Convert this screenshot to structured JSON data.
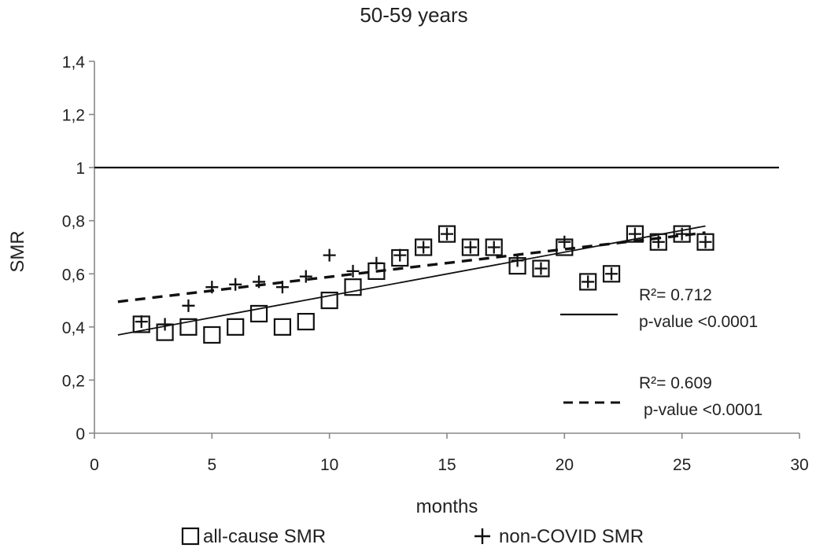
{
  "chart_data": {
    "type": "scatter",
    "title": "50-59 years",
    "xlabel": "months",
    "ylabel": "SMR",
    "xlim": [
      0,
      30
    ],
    "ylim": [
      0,
      1.4
    ],
    "x_ticks": [
      "0",
      "5",
      "10",
      "15",
      "20",
      "25",
      "30"
    ],
    "y_ticks": [
      "0",
      "0,2",
      "0,4",
      "0,6",
      "0,8",
      "1",
      "1,2",
      "1,4"
    ],
    "grid": false,
    "reference_line": {
      "y": 1
    },
    "series": [
      {
        "name": "all-cause SMR",
        "marker": "square",
        "points": [
          {
            "x": 2,
            "y": 0.41
          },
          {
            "x": 3,
            "y": 0.38
          },
          {
            "x": 4,
            "y": 0.4
          },
          {
            "x": 5,
            "y": 0.37
          },
          {
            "x": 6,
            "y": 0.4
          },
          {
            "x": 7,
            "y": 0.45
          },
          {
            "x": 8,
            "y": 0.4
          },
          {
            "x": 9,
            "y": 0.42
          },
          {
            "x": 10,
            "y": 0.5
          },
          {
            "x": 11,
            "y": 0.55
          },
          {
            "x": 12,
            "y": 0.61
          },
          {
            "x": 13,
            "y": 0.66
          },
          {
            "x": 14,
            "y": 0.7
          },
          {
            "x": 15,
            "y": 0.75
          },
          {
            "x": 16,
            "y": 0.7
          },
          {
            "x": 17,
            "y": 0.7
          },
          {
            "x": 18,
            "y": 0.63
          },
          {
            "x": 19,
            "y": 0.62
          },
          {
            "x": 20,
            "y": 0.7
          },
          {
            "x": 21,
            "y": 0.57
          },
          {
            "x": 22,
            "y": 0.6
          },
          {
            "x": 23,
            "y": 0.75
          },
          {
            "x": 24,
            "y": 0.72
          },
          {
            "x": 25,
            "y": 0.75
          },
          {
            "x": 26,
            "y": 0.72
          }
        ],
        "trend": {
          "style": "solid",
          "from": [
            1,
            0.37
          ],
          "to": [
            26,
            0.78
          ]
        },
        "r2_label": "R²= 0.712",
        "p_label": "p-value <0.0001"
      },
      {
        "name": "non-COVID SMR",
        "marker": "plus",
        "points": [
          {
            "x": 2,
            "y": 0.42
          },
          {
            "x": 3,
            "y": 0.41
          },
          {
            "x": 4,
            "y": 0.48
          },
          {
            "x": 5,
            "y": 0.55
          },
          {
            "x": 6,
            "y": 0.56
          },
          {
            "x": 7,
            "y": 0.57
          },
          {
            "x": 8,
            "y": 0.55
          },
          {
            "x": 9,
            "y": 0.59
          },
          {
            "x": 10,
            "y": 0.67
          },
          {
            "x": 11,
            "y": 0.61
          },
          {
            "x": 12,
            "y": 0.64
          },
          {
            "x": 13,
            "y": 0.67
          },
          {
            "x": 14,
            "y": 0.7
          },
          {
            "x": 15,
            "y": 0.75
          },
          {
            "x": 16,
            "y": 0.7
          },
          {
            "x": 17,
            "y": 0.7
          },
          {
            "x": 18,
            "y": 0.65
          },
          {
            "x": 19,
            "y": 0.62
          },
          {
            "x": 20,
            "y": 0.72
          },
          {
            "x": 21,
            "y": 0.57
          },
          {
            "x": 22,
            "y": 0.6
          },
          {
            "x": 23,
            "y": 0.75
          },
          {
            "x": 24,
            "y": 0.72
          },
          {
            "x": 25,
            "y": 0.75
          },
          {
            "x": 26,
            "y": 0.72
          }
        ],
        "trend": {
          "style": "dashed",
          "from": [
            1,
            0.495
          ],
          "to": [
            26,
            0.755
          ]
        },
        "r2_label": "R²= 0.609",
        "p_label": "p-value <0.0001"
      }
    ],
    "legend": [
      {
        "marker": "square",
        "label": "all-cause SMR"
      },
      {
        "marker": "plus",
        "label": "non-COVID SMR"
      }
    ],
    "legend_position": "bottom"
  }
}
